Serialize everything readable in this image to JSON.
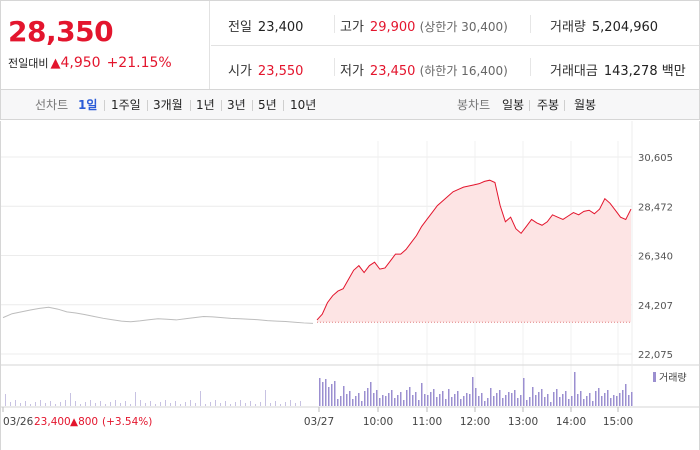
{
  "quote": {
    "price": "28,350",
    "change_label": "전일대비",
    "change_arrow": "▲",
    "change_value": "4,950",
    "change_pct": "+21.15%"
  },
  "stats": {
    "prev_close": {
      "label": "전일",
      "value": "23,400"
    },
    "open": {
      "label": "시가",
      "value": "23,550"
    },
    "high": {
      "label": "고가",
      "value": "29,900",
      "note": "(상한가 30,400)"
    },
    "low": {
      "label": "저가",
      "value": "23,450",
      "note": "(하한가 16,400)"
    },
    "volume": {
      "label": "거래량",
      "value": "5,204,960"
    },
    "amount": {
      "label": "거래대금",
      "value": "143,278 백만"
    }
  },
  "periods": {
    "caption": "선차트",
    "items": [
      "1일",
      "1주일",
      "3개월",
      "1년",
      "3년",
      "5년",
      "10년"
    ],
    "selected": "1일"
  },
  "candles": {
    "caption": "봉차트",
    "items": [
      "일봉",
      "주봉",
      "월봉"
    ]
  },
  "colors": {
    "up": "#e3152d",
    "prev_line": "#bdbdbd",
    "area_fill": "#fde4e4",
    "volume": "#9b8fd0",
    "accent": "#2a5bd7"
  },
  "chart_data": {
    "type": "line",
    "y_ticks": [
      "30,605",
      "28,472",
      "26,340",
      "24,207",
      "22,075"
    ],
    "ylim": [
      22075,
      30605
    ],
    "x_ticks": [
      "03/26",
      "03/27",
      "10:00",
      "11:00",
      "12:00",
      "13:00",
      "14:00",
      "15:00"
    ],
    "prev_day": {
      "date": "03/26",
      "close_label": "23,400",
      "change_label": "▲800",
      "pct_label": "(+3.54%)",
      "values": [
        23650,
        23820,
        23900,
        23980,
        24050,
        24100,
        24020,
        23900,
        23850,
        23780,
        23700,
        23620,
        23560,
        23500,
        23470,
        23510,
        23560,
        23600,
        23580,
        23550,
        23600,
        23650,
        23700,
        23680,
        23650,
        23620,
        23600,
        23580,
        23560,
        23520,
        23500,
        23480,
        23450,
        23420,
        23400
      ]
    },
    "today": {
      "date": "03/27",
      "values": [
        23550,
        23800,
        24300,
        24600,
        24800,
        24900,
        25300,
        25700,
        25900,
        25600,
        25900,
        26050,
        25750,
        25800,
        26100,
        26400,
        26400,
        26600,
        26900,
        27200,
        27600,
        27900,
        28200,
        28500,
        28700,
        28900,
        29100,
        29200,
        29300,
        29350,
        29400,
        29450,
        29550,
        29600,
        29500,
        28500,
        27800,
        28000,
        27500,
        27300,
        27600,
        27900,
        27750,
        27650,
        27800,
        28100,
        28000,
        27900,
        28050,
        28200,
        28100,
        28250,
        28300,
        28150,
        28350,
        28800,
        28600,
        28300,
        28000,
        27900,
        28350
      ]
    },
    "volume_legend": "거래량"
  }
}
